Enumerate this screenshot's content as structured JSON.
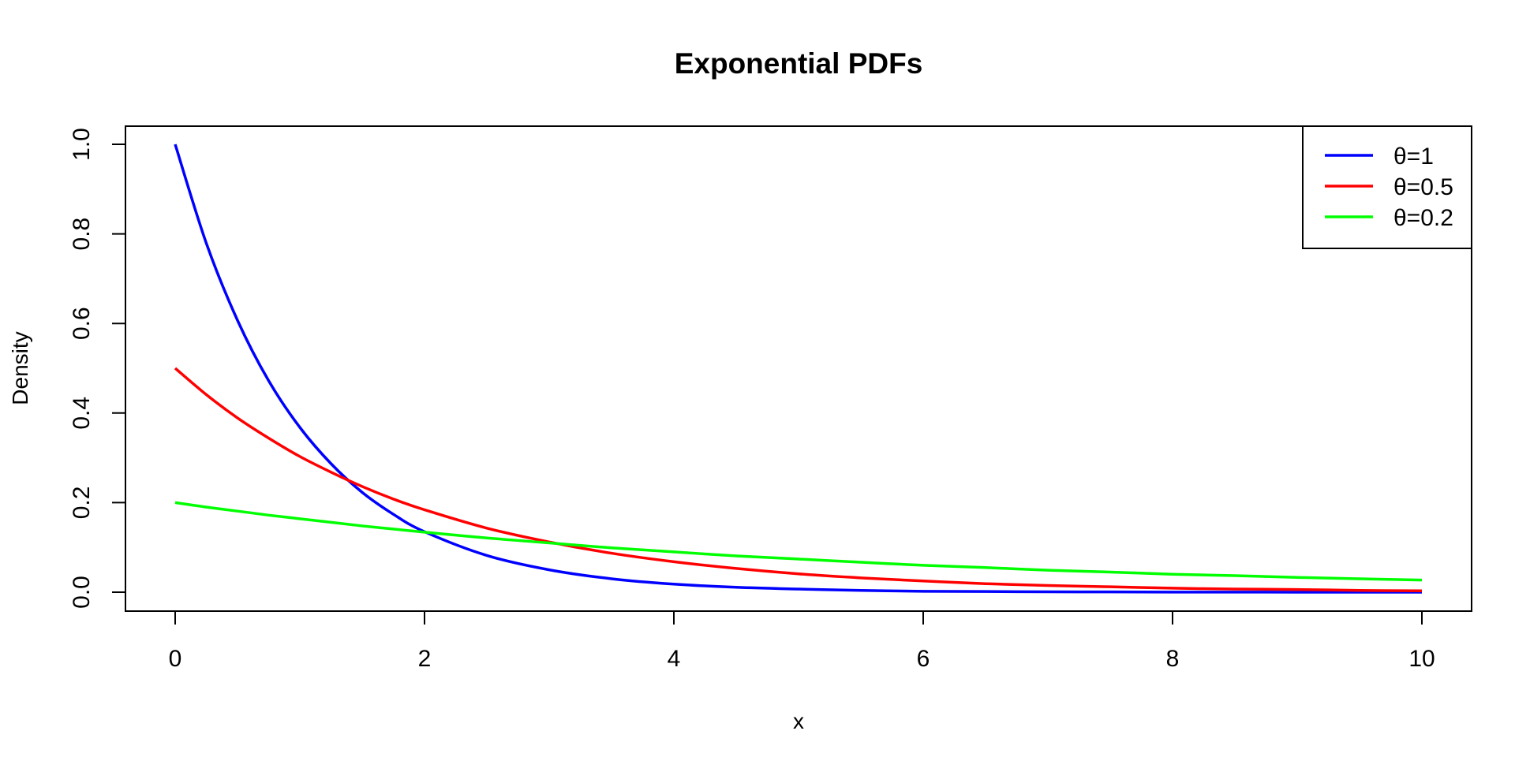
{
  "chart_data": {
    "type": "line",
    "title": "Exponential PDFs",
    "xlabel": "x",
    "ylabel": "Density",
    "xlim": [
      0,
      10
    ],
    "ylim": [
      0,
      1
    ],
    "x_ticks": [
      0,
      2,
      4,
      6,
      8,
      10
    ],
    "x_tick_labels": [
      "0",
      "2",
      "4",
      "6",
      "8",
      "10"
    ],
    "y_ticks": [
      0,
      0.2,
      0.4,
      0.6,
      0.8,
      1.0
    ],
    "y_tick_labels": [
      "0.0",
      "0.2",
      "0.4",
      "0.6",
      "0.8",
      "1.0"
    ],
    "grid": false,
    "legend_position": "top-right",
    "x": [
      0,
      0.25,
      0.5,
      0.75,
      1,
      1.25,
      1.5,
      1.75,
      2,
      2.5,
      3,
      3.5,
      4,
      4.5,
      5,
      5.5,
      6,
      6.5,
      7,
      7.5,
      8,
      8.5,
      9,
      9.5,
      10
    ],
    "series": [
      {
        "name": "θ=1",
        "color": "#0000ff",
        "values": [
          1.0,
          0.779,
          0.607,
          0.472,
          0.368,
          0.287,
          0.223,
          0.174,
          0.135,
          0.082,
          0.05,
          0.03,
          0.018,
          0.011,
          0.007,
          0.004,
          0.002,
          0.0015,
          0.0009,
          0.0006,
          0.0003,
          0.0002,
          0.0001,
          0.0001,
          0.0
        ]
      },
      {
        "name": "θ=0.5",
        "color": "#ff0000",
        "values": [
          0.5,
          0.441,
          0.389,
          0.344,
          0.303,
          0.268,
          0.236,
          0.208,
          0.184,
          0.143,
          0.112,
          0.087,
          0.068,
          0.053,
          0.041,
          0.032,
          0.025,
          0.019,
          0.015,
          0.012,
          0.009,
          0.007,
          0.006,
          0.004,
          0.003
        ]
      },
      {
        "name": "θ=0.2",
        "color": "#00ff00",
        "values": [
          0.2,
          0.19,
          0.181,
          0.172,
          0.164,
          0.156,
          0.148,
          0.141,
          0.134,
          0.121,
          0.11,
          0.099,
          0.09,
          0.081,
          0.074,
          0.067,
          0.06,
          0.055,
          0.049,
          0.045,
          0.04,
          0.037,
          0.033,
          0.03,
          0.027
        ]
      }
    ]
  }
}
